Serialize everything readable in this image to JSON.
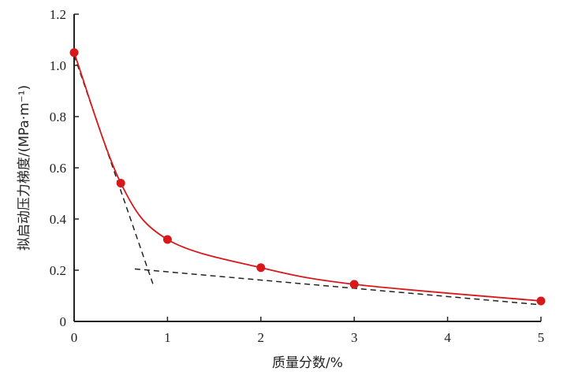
{
  "chart_data": {
    "type": "scatter",
    "title": "",
    "xlabel": "质量分数/%",
    "ylabel": "拟启动压力梯度/(MPa·m⁻¹)",
    "xlim": [
      0,
      5
    ],
    "ylim": [
      0,
      1.2
    ],
    "x_ticks": [
      "0",
      "1",
      "2",
      "3",
      "4",
      "5"
    ],
    "y_ticks": [
      "0",
      "0.2",
      "0.4",
      "0.6",
      "0.8",
      "1.0",
      "1.2"
    ],
    "grid": false,
    "legend": "none",
    "series": [
      {
        "x": [
          0,
          0.5,
          1,
          2,
          3,
          5
        ],
        "y": [
          1.05,
          0.54,
          0.32,
          0.21,
          0.145,
          0.08
        ],
        "marker_color": "#d7191c",
        "curve_color": "#d7191c"
      }
    ],
    "dashed_lines": [
      {
        "x": [
          0,
          0.85
        ],
        "y": [
          1.04,
          0.14
        ],
        "color": "#222222"
      },
      {
        "x": [
          0.65,
          5
        ],
        "y": [
          0.205,
          0.065
        ],
        "color": "#222222"
      }
    ]
  }
}
